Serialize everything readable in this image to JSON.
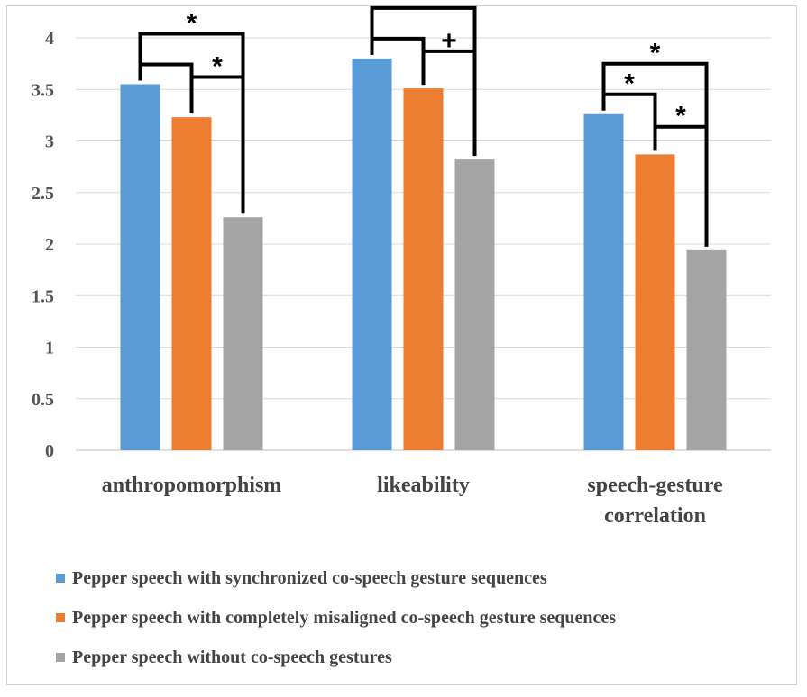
{
  "chart_data": {
    "type": "bar",
    "categories": [
      [
        "anthropomorphism"
      ],
      [
        "likeability"
      ],
      [
        "speech-gesture",
        "correlation"
      ]
    ],
    "series": [
      {
        "name": "Pepper speech with synchronized co-speech gesture sequences",
        "color": "#5b9bd5",
        "values": [
          3.55,
          3.8,
          3.26
        ]
      },
      {
        "name": "Pepper speech with completely misaligned co-speech gesture sequences",
        "color": "#ed7d31",
        "values": [
          3.23,
          3.51,
          2.87
        ]
      },
      {
        "name": "Pepper speech without co-speech gestures",
        "color": "#a5a5a5",
        "values": [
          2.26,
          2.82,
          1.94
        ]
      }
    ],
    "yticks": [
      "0",
      "0.5",
      "1",
      "1.5",
      "2",
      "2.5",
      "3",
      "3.5",
      "4"
    ],
    "ylim": [
      0,
      4
    ],
    "grid": true,
    "legend_position": "bottom",
    "significance": [
      {
        "category": 0,
        "from": 0,
        "to": 2,
        "label": "*"
      },
      {
        "category": 0,
        "from": 0,
        "to": 1,
        "label": ""
      },
      {
        "category": 0,
        "from": 1,
        "to": 2,
        "label": "*"
      },
      {
        "category": 1,
        "from": 0,
        "to": 2,
        "label": "*"
      },
      {
        "category": 1,
        "from": 0,
        "to": 1,
        "label": ""
      },
      {
        "category": 1,
        "from": 1,
        "to": 2,
        "label": "+"
      },
      {
        "category": 2,
        "from": 0,
        "to": 2,
        "label": "*"
      },
      {
        "category": 2,
        "from": 0,
        "to": 1,
        "label": "*"
      },
      {
        "category": 2,
        "from": 1,
        "to": 2,
        "label": "*"
      }
    ]
  }
}
